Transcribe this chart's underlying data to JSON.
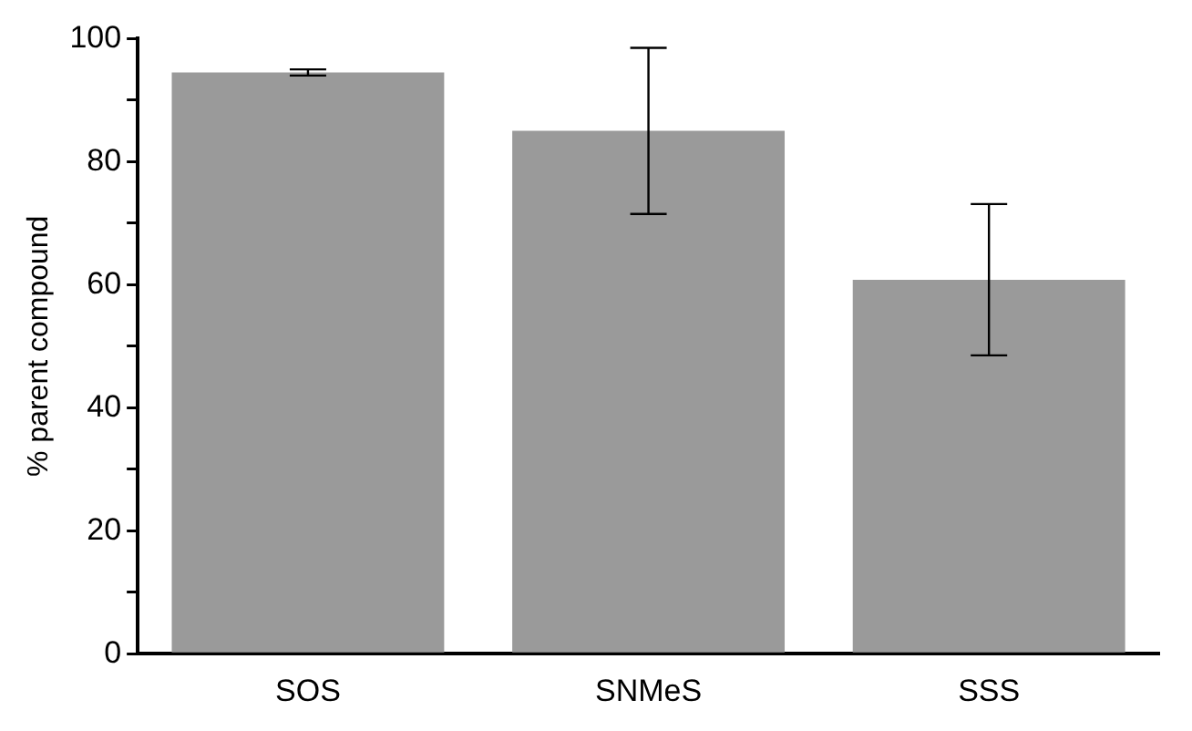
{
  "chart_data": {
    "type": "bar",
    "ylabel": "% parent compound",
    "categories": [
      "SOS",
      "SNMeS",
      "SSS"
    ],
    "values": [
      94.5,
      85,
      60.8
    ],
    "errors": [
      0.5,
      13.5,
      12.3
    ],
    "color": "#9a9a9a",
    "ylim": [
      0,
      100
    ],
    "yticks": [
      0,
      {
        "value": 10,
        "label": null
      },
      20,
      {
        "value": 30,
        "label": null
      },
      40,
      {
        "value": 50,
        "label": null
      },
      60,
      {
        "value": 70,
        "label": null
      },
      80,
      {
        "value": 90,
        "label": null
      },
      100
    ],
    "grid": false,
    "legend": false
  }
}
